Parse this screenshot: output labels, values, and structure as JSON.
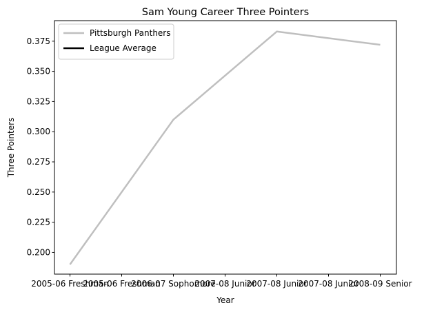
{
  "chart_data": {
    "type": "line",
    "title": "Sam Young  Career Three Pointers",
    "xlabel": "Year",
    "ylabel": "Three Pointers",
    "categories": [
      "2005-06 Freshman",
      "2005-06 Freshman",
      "2006-07 Sophomore",
      "2007-08 Junior",
      "2007-08 Junior",
      "2007-08 Junior",
      "2008-09 Senior"
    ],
    "ylim": [
      0.182,
      0.392
    ],
    "yticks": [
      "0.200",
      "0.225",
      "0.250",
      "0.275",
      "0.300",
      "0.325",
      "0.350",
      "0.375"
    ],
    "grid": false,
    "legend_position": "upper left",
    "series": [
      {
        "name": "Pittsburgh Panthers",
        "color": "#bfbfbf",
        "points": [
          {
            "x": 0,
            "y": 0.19
          },
          {
            "x": 2,
            "y": 0.31
          },
          {
            "x": 4,
            "y": 0.383
          },
          {
            "x": 6,
            "y": 0.372
          }
        ]
      },
      {
        "name": "League Average",
        "color": "#000000",
        "points": []
      }
    ]
  }
}
